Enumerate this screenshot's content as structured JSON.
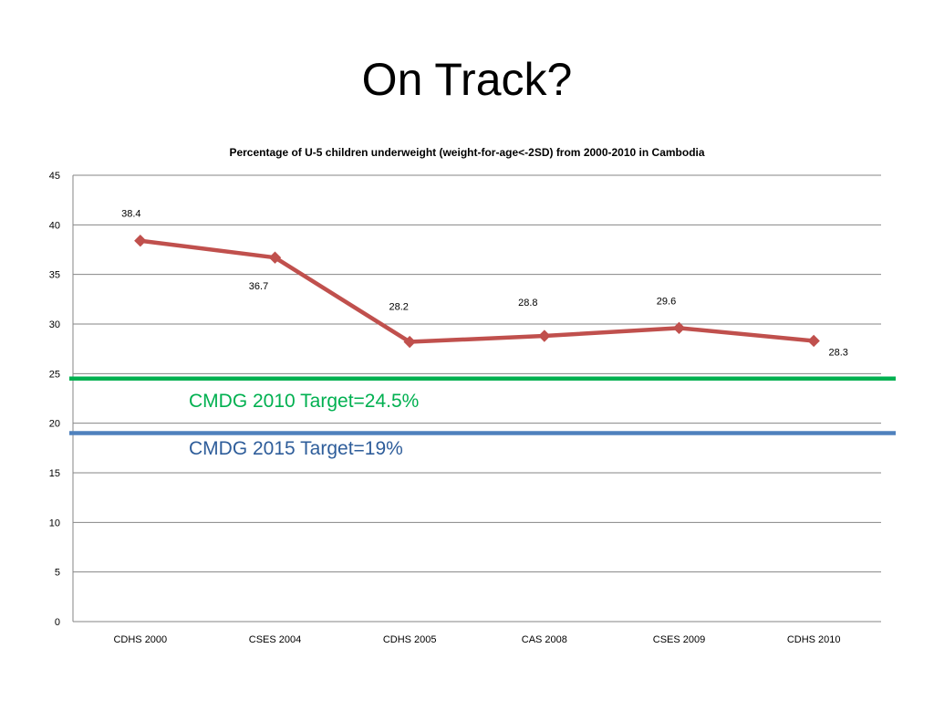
{
  "slide": {
    "title": "On Track?"
  },
  "chart_data": {
    "type": "line",
    "title": "Percentage of U-5 children underweight (weight-for-age<-2SD) from 2000-2010 in Cambodia",
    "xlabel": "",
    "ylabel": "",
    "categories": [
      "CDHS 2000",
      "CSES 2004",
      "CDHS 2005",
      "CAS 2008",
      "CSES 2009",
      "CDHS 2010"
    ],
    "series": [
      {
        "values": [
          38.4,
          36.7,
          28.2,
          28.8,
          29.6,
          28.3
        ],
        "data_labels": [
          "38.4",
          "36.7",
          "28.2",
          "28.8",
          "29.6",
          "28.3"
        ],
        "color": "#C0504D",
        "marker": "diamond"
      }
    ],
    "ylim": [
      0,
      45
    ],
    "yticks": [
      "0",
      "5",
      "10",
      "15",
      "20",
      "25",
      "30",
      "35",
      "40",
      "45"
    ],
    "grid": true,
    "legend": "none",
    "reference_lines": [
      {
        "value": 24.5,
        "label": "CMDG 2010 Target=24.5%",
        "color": "#00B050"
      },
      {
        "value": 19,
        "label": "CMDG 2015 Target=19%",
        "color": "#4F81BD"
      }
    ]
  }
}
